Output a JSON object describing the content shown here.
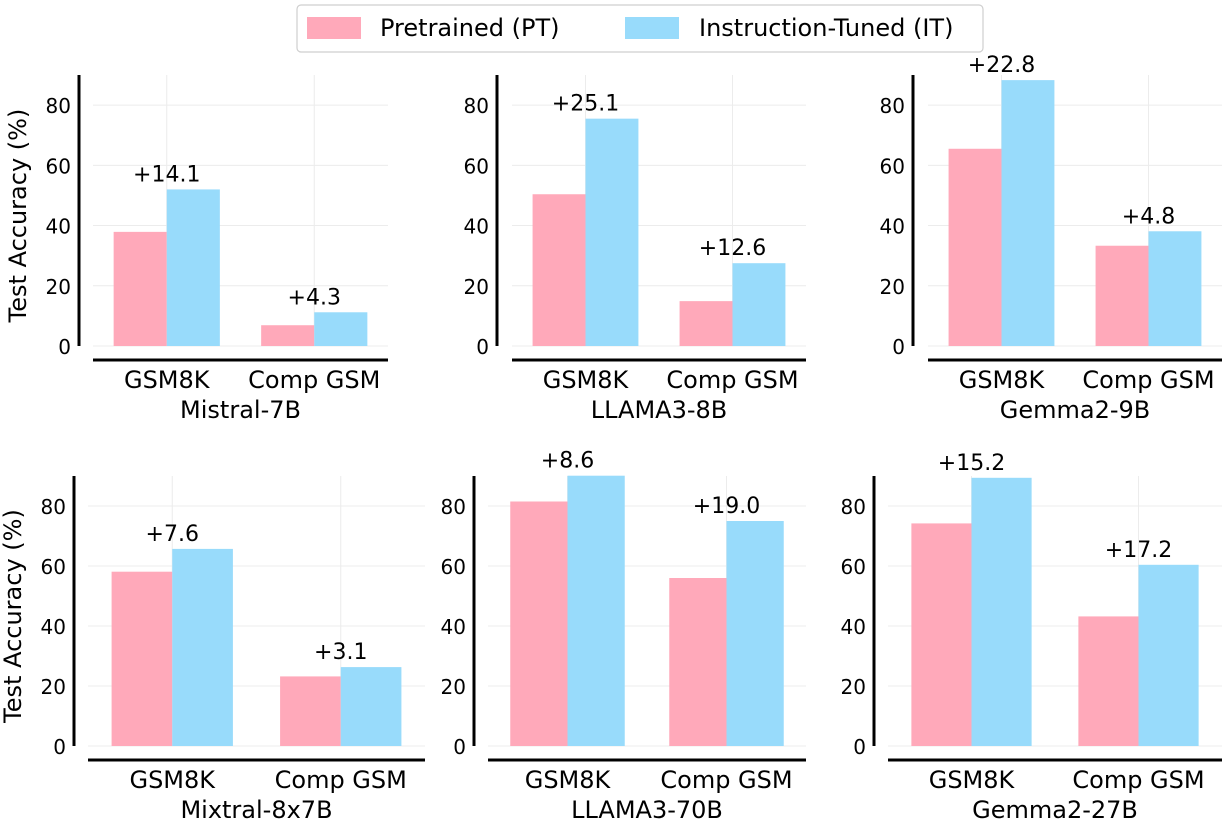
{
  "legend": {
    "items": [
      {
        "label": "Pretrained (PT)",
        "color": "#FFA9BA"
      },
      {
        "label": "Instruction-Tuned (IT)",
        "color": "#98DBFB"
      }
    ]
  },
  "chart_data": [
    {
      "type": "bar",
      "title": "Mistral-7B",
      "ylabel": "Test Accuracy (%)",
      "categories": [
        "GSM8K",
        "Comp GSM"
      ],
      "series": [
        {
          "name": "Pretrained (PT)",
          "values": [
            37.9,
            6.9
          ]
        },
        {
          "name": "Instruction-Tuned (IT)",
          "values": [
            52.0,
            11.2
          ]
        }
      ],
      "annotations": [
        "+14.1",
        "+4.3"
      ],
      "ylim": [
        0,
        90
      ],
      "yticks": [
        0,
        20,
        40,
        60,
        80
      ]
    },
    {
      "type": "bar",
      "title": "LLAMA3-8B",
      "ylabel": "",
      "categories": [
        "GSM8K",
        "Comp GSM"
      ],
      "series": [
        {
          "name": "Pretrained (PT)",
          "values": [
            50.4,
            14.9
          ]
        },
        {
          "name": "Instruction-Tuned (IT)",
          "values": [
            75.5,
            27.5
          ]
        }
      ],
      "annotations": [
        "+25.1",
        "+12.6"
      ],
      "ylim": [
        0,
        90
      ],
      "yticks": [
        0,
        20,
        40,
        60,
        80
      ]
    },
    {
      "type": "bar",
      "title": "Gemma2-9B",
      "ylabel": "",
      "categories": [
        "GSM8K",
        "Comp GSM"
      ],
      "series": [
        {
          "name": "Pretrained (PT)",
          "values": [
            65.5,
            33.3
          ]
        },
        {
          "name": "Instruction-Tuned (IT)",
          "values": [
            88.3,
            38.1
          ]
        }
      ],
      "annotations": [
        "+22.8",
        "+4.8"
      ],
      "ylim": [
        0,
        90
      ],
      "yticks": [
        0,
        20,
        40,
        60,
        80
      ]
    },
    {
      "type": "bar",
      "title": "Mixtral-8x7B",
      "ylabel": "Test Accuracy (%)",
      "categories": [
        "GSM8K",
        "Comp GSM"
      ],
      "series": [
        {
          "name": "Pretrained (PT)",
          "values": [
            58.1,
            23.2
          ]
        },
        {
          "name": "Instruction-Tuned (IT)",
          "values": [
            65.7,
            26.3
          ]
        }
      ],
      "annotations": [
        "+7.6",
        "+3.1"
      ],
      "ylim": [
        0,
        90
      ],
      "yticks": [
        0,
        20,
        40,
        60,
        80
      ]
    },
    {
      "type": "bar",
      "title": "LLAMA3-70B",
      "ylabel": "",
      "categories": [
        "GSM8K",
        "Comp GSM"
      ],
      "series": [
        {
          "name": "Pretrained (PT)",
          "values": [
            81.5,
            56.0
          ]
        },
        {
          "name": "Instruction-Tuned (IT)",
          "values": [
            90.1,
            75.0
          ]
        }
      ],
      "annotations": [
        "+8.6",
        "+19.0"
      ],
      "ylim": [
        0,
        90
      ],
      "yticks": [
        0,
        20,
        40,
        60,
        80
      ]
    },
    {
      "type": "bar",
      "title": "Gemma2-27B",
      "ylabel": "",
      "categories": [
        "GSM8K",
        "Comp GSM"
      ],
      "series": [
        {
          "name": "Pretrained (PT)",
          "values": [
            74.2,
            43.2
          ]
        },
        {
          "name": "Instruction-Tuned (IT)",
          "values": [
            89.4,
            60.4
          ]
        }
      ],
      "annotations": [
        "+15.2",
        "+17.2"
      ],
      "ylim": [
        0,
        90
      ],
      "yticks": [
        0,
        20,
        40,
        60,
        80
      ]
    }
  ]
}
